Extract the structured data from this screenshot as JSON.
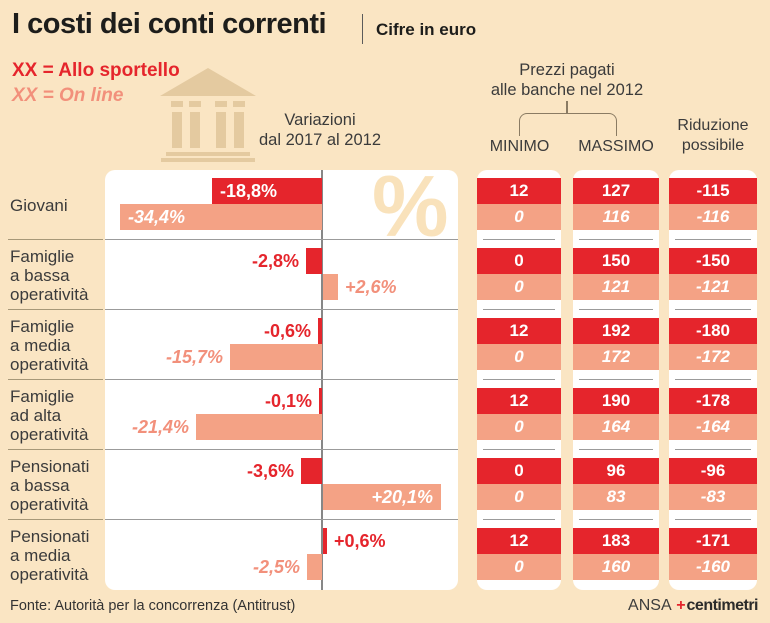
{
  "title": "I costi dei conti correnti",
  "subtitle": "Cifre in euro",
  "legend": {
    "sportello": "XX = Allo sportello",
    "online": "XX = On line"
  },
  "headers": {
    "variazioni_line1": "Variazioni",
    "variazioni_line2": "dal 2017 al 2012",
    "prezzi_line1": "Prezzi pagati",
    "prezzi_line2": "alle banche nel 2012",
    "minimo": "MINIMO",
    "massimo": "MASSIMO",
    "riduzione_line1": "Riduzione",
    "riduzione_line2": "possibile"
  },
  "rows": [
    {
      "label_lines": [
        "Giovani"
      ],
      "sportello": {
        "pct": -18.8,
        "pct_label": "-18,8%",
        "label_inside": true,
        "minimo": "12",
        "massimo": "127",
        "riduzione": "-115"
      },
      "online": {
        "pct": -34.4,
        "pct_label": "-34,4%",
        "label_inside": true,
        "minimo": "0",
        "massimo": "116",
        "riduzione": "-116"
      }
    },
    {
      "label_lines": [
        "Famiglie",
        "a bassa",
        "operatività"
      ],
      "sportello": {
        "pct": -2.8,
        "pct_label": "-2,8%",
        "label_inside": false,
        "minimo": "0",
        "massimo": "150",
        "riduzione": "-150"
      },
      "online": {
        "pct": 2.6,
        "pct_label": "+2,6%",
        "label_inside": false,
        "minimo": "0",
        "massimo": "121",
        "riduzione": "-121"
      }
    },
    {
      "label_lines": [
        "Famiglie",
        "a media",
        "operatività"
      ],
      "sportello": {
        "pct": -0.6,
        "pct_label": "-0,6%",
        "label_inside": false,
        "minimo": "12",
        "massimo": "192",
        "riduzione": "-180"
      },
      "online": {
        "pct": -15.7,
        "pct_label": "-15,7%",
        "label_inside": false,
        "minimo": "0",
        "massimo": "172",
        "riduzione": "-172"
      }
    },
    {
      "label_lines": [
        "Famiglie",
        "ad alta",
        "operatività"
      ],
      "sportello": {
        "pct": -0.1,
        "pct_label": "-0,1%",
        "label_inside": false,
        "minimo": "12",
        "massimo": "190",
        "riduzione": "-178"
      },
      "online": {
        "pct": -21.4,
        "pct_label": "-21,4%",
        "label_inside": false,
        "minimo": "0",
        "massimo": "164",
        "riduzione": "-164"
      }
    },
    {
      "label_lines": [
        "Pensionati",
        "a bassa",
        "operatività"
      ],
      "sportello": {
        "pct": -3.6,
        "pct_label": "-3,6%",
        "label_inside": false,
        "minimo": "0",
        "massimo": "96",
        "riduzione": "-96"
      },
      "online": {
        "pct": 20.1,
        "pct_label": "+20,1%",
        "label_inside": true,
        "minimo": "0",
        "massimo": "83",
        "riduzione": "-83"
      }
    },
    {
      "label_lines": [
        "Pensionati",
        "a media",
        "operatività"
      ],
      "sportello": {
        "pct": 0.6,
        "pct_label": "+0,6%",
        "label_inside": false,
        "minimo": "12",
        "massimo": "183",
        "riduzione": "-171"
      },
      "online": {
        "pct": -2.5,
        "pct_label": "-2,5%",
        "label_inside": false,
        "minimo": "0",
        "massimo": "160",
        "riduzione": "-160"
      }
    }
  ],
  "chart_data": {
    "type": "bar",
    "title": "I costi dei conti correnti (Cifre in euro)",
    "categories": [
      "Giovani",
      "Famiglie a bassa operatività",
      "Famiglie a media operatività",
      "Famiglie ad alta operatività",
      "Pensionati a bassa operatività",
      "Pensionati a media operatività"
    ],
    "series": [
      {
        "name": "Allo sportello",
        "variazione_pct": [
          -18.8,
          -2.8,
          -0.6,
          -0.1,
          -3.6,
          0.6
        ],
        "minimo": [
          12,
          0,
          12,
          12,
          0,
          12
        ],
        "massimo": [
          127,
          150,
          192,
          190,
          96,
          183
        ],
        "riduzione_possibile": [
          -115,
          -150,
          -180,
          -178,
          -96,
          -171
        ]
      },
      {
        "name": "On line",
        "variazione_pct": [
          -34.4,
          2.6,
          -15.7,
          -21.4,
          20.1,
          -2.5
        ],
        "minimo": [
          0,
          0,
          0,
          0,
          0,
          0
        ],
        "massimo": [
          116,
          121,
          172,
          164,
          83,
          160
        ],
        "riduzione_possibile": [
          -116,
          -121,
          -172,
          -164,
          -83,
          -160
        ]
      }
    ],
    "xlabel": "Variazioni dal 2017 al 2012 (%)",
    "unit": "euro",
    "legend_position": "top-left",
    "grid": false
  },
  "watermark": "%",
  "footer": {
    "source": "Fonte: Autorità per la concorrenza (Antitrust)",
    "ansa": "ANSA",
    "plus": "+",
    "centimetri": "centimetri"
  },
  "colors": {
    "bg": "#fae5c3",
    "red": "#e5252c",
    "salmon": "#f4a285",
    "salmon_text": "#f2907b",
    "watermark": "#f9e2bb",
    "tan": "#e4caa0"
  }
}
